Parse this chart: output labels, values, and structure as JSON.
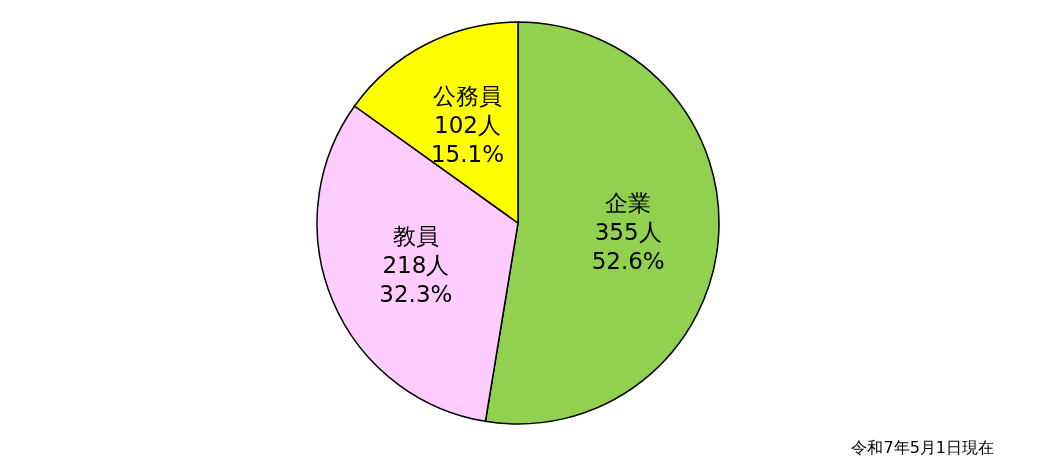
{
  "chart_data": {
    "type": "pie",
    "categories": [
      "企業",
      "教員",
      "公務員"
    ],
    "values": [
      355,
      218,
      102
    ],
    "value_labels": [
      "355人\n52.6%",
      "218人\n32.3%",
      "102人\n15.1%"
    ],
    "colors": [
      "#92d050",
      "#ffccff",
      "#ffff00"
    ],
    "annotations": [
      "令和7年5月1日現在"
    ]
  }
}
